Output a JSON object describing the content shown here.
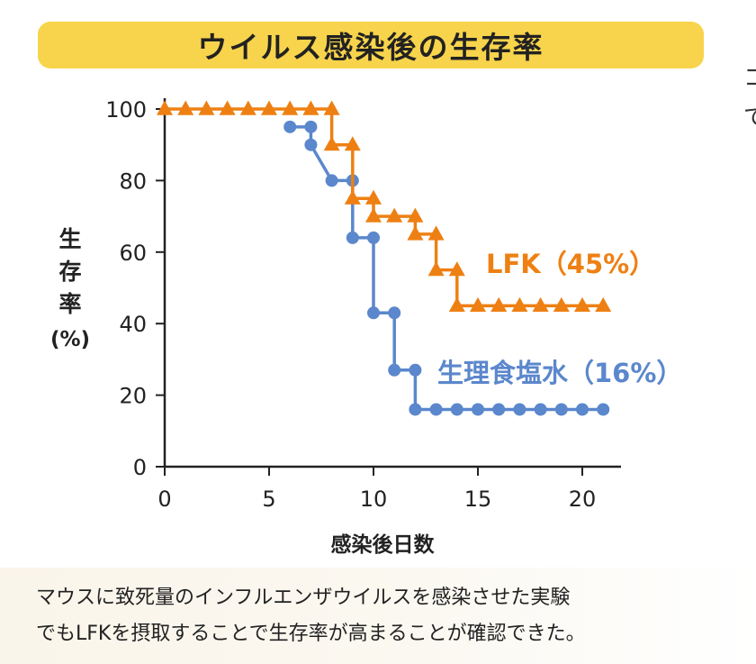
{
  "title": "ウイルス感染後の生存率",
  "edge_glyphs": [
    "コ",
    "で"
  ],
  "caption": {
    "line1": "マウスに致死量のインフルエンザウイルスを感染させた実験",
    "line2": "でもLFKを摂取することで生存率が高まることが確認できた。"
  },
  "colors": {
    "orange": "#ee8013",
    "blue": "#5b87cc",
    "axis": "#222222",
    "title_bg": "#f8d44c"
  },
  "chart_data": {
    "type": "line",
    "step": true,
    "title": "ウイルス感染後の生存率",
    "xlabel": "感染後日数",
    "ylabel": "生存率 (%)",
    "ylabel_chars": [
      "生",
      "存",
      "率",
      "(%)"
    ],
    "xlim": [
      0,
      22
    ],
    "ylim": [
      0,
      100
    ],
    "xticks": [
      0,
      5,
      10,
      15,
      20
    ],
    "yticks": [
      0,
      20,
      40,
      60,
      80,
      100
    ],
    "grid": false,
    "series": [
      {
        "name": "LFK",
        "label": "LFK（45%）",
        "color": "#ee8013",
        "marker": "triangle",
        "x": [
          0,
          1,
          2,
          3,
          4,
          5,
          6,
          7,
          8,
          8,
          9,
          9,
          10,
          10,
          11,
          12,
          12,
          13,
          13,
          14,
          14,
          15,
          16,
          17,
          18,
          19,
          20,
          21
        ],
        "y": [
          100,
          100,
          100,
          100,
          100,
          100,
          100,
          100,
          100,
          90,
          90,
          75,
          75,
          70,
          70,
          70,
          65,
          65,
          55,
          55,
          45,
          45,
          45,
          45,
          45,
          45,
          45,
          45
        ]
      },
      {
        "name": "生理食塩水",
        "label": "生理食塩水（16%）",
        "color": "#5b87cc",
        "marker": "circle",
        "x": [
          6,
          7,
          7,
          8,
          9,
          9,
          10,
          10,
          11,
          11,
          12,
          12,
          13,
          14,
          15,
          16,
          17,
          18,
          19,
          20,
          21
        ],
        "y": [
          95,
          95,
          90,
          80,
          80,
          64,
          64,
          43,
          43,
          27,
          27,
          16,
          16,
          16,
          16,
          16,
          16,
          16,
          16,
          16,
          16
        ]
      }
    ]
  }
}
